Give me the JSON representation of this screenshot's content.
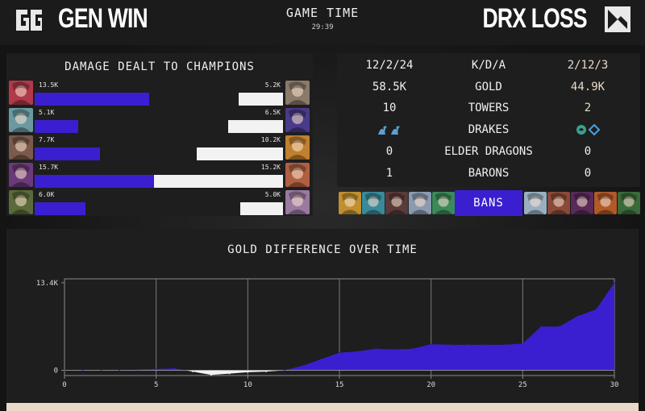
{
  "header": {
    "left_team": "GEN WIN",
    "right_team": "DRX LOSS",
    "game_time_label": "GAME TIME",
    "game_clock": "29:39"
  },
  "damage": {
    "title": "DAMAGE DEALT TO CHAMPIONS",
    "rows": [
      {
        "left_value": "13.5K",
        "left_num": 13.5,
        "left_color": "#b03a4a",
        "right_value": "5.2K",
        "right_num": 5.2,
        "right_color": "#8a7a6a"
      },
      {
        "left_value": "5.1K",
        "left_num": 5.1,
        "left_color": "#6a9aa0",
        "right_value": "6.5K",
        "right_num": 6.5,
        "right_color": "#4a3a8a"
      },
      {
        "left_value": "7.7K",
        "left_num": 7.7,
        "left_color": "#7a5a4a",
        "right_value": "10.2K",
        "right_num": 10.2,
        "right_color": "#c08030"
      },
      {
        "left_value": "15.7K",
        "left_num": 15.7,
        "left_color": "#6a3a7a",
        "right_value": "15.2K",
        "right_num": 15.2,
        "right_color": "#b06040"
      },
      {
        "left_value": "6.0K",
        "left_num": 6.0,
        "left_color": "#5a6a3a",
        "right_value": "5.0K",
        "right_num": 5.0,
        "right_color": "#9a7aa0"
      }
    ]
  },
  "stats": {
    "rows": [
      {
        "left": "12/2/24",
        "label": "K/D/A",
        "right": "2/12/3",
        "right_accent": true
      },
      {
        "left": "58.5K",
        "label": "GOLD",
        "right": "44.9K",
        "right_accent": true
      },
      {
        "left": "10",
        "label": "TOWERS",
        "right": "2",
        "right_accent": true
      },
      {
        "left": "",
        "label": "DRAKES",
        "right": "",
        "right_accent": false,
        "icons": true
      },
      {
        "left": "0",
        "label": "ELDER DRAGONS",
        "right": "0",
        "right_accent": false
      },
      {
        "left": "1",
        "label": "BARONS",
        "right": "0",
        "right_accent": false
      }
    ],
    "drake_icons_left": [
      "ocean-drake-icon",
      "ocean-drake-icon"
    ],
    "drake_icons_right": [
      "cloud-drake-icon",
      "hextech-drake-icon"
    ]
  },
  "bans": {
    "label": "BANS",
    "left_colors": [
      "#c09030",
      "#3a8a9a",
      "#5a3a3a",
      "#8a9ab0",
      "#3a8a5a"
    ],
    "right_colors": [
      "#9ab0c0",
      "#8a4a3a",
      "#5a2a5a",
      "#b05a2a",
      "#3a6a3a"
    ]
  },
  "chart_data": {
    "type": "area",
    "title": "GOLD DIFFERENCE OVER TIME",
    "x": [
      0,
      1,
      2,
      3,
      4,
      5,
      6,
      7,
      8,
      9,
      10,
      11,
      12,
      13,
      14,
      15,
      16,
      17,
      18,
      19,
      20,
      21,
      22,
      23,
      24,
      25,
      26,
      27,
      28,
      29,
      30
    ],
    "values": [
      0,
      0,
      0,
      0,
      100,
      200,
      300,
      -200,
      -700,
      -500,
      -300,
      -200,
      0,
      700,
      1700,
      2700,
      2900,
      3300,
      3200,
      3300,
      4000,
      3900,
      3900,
      3900,
      3900,
      4100,
      6700,
      6700,
      8300,
      9300,
      13400
    ],
    "xlim": [
      0,
      30
    ],
    "ylim": [
      -800,
      14000
    ],
    "xticks": [
      "0",
      "5",
      "10",
      "15",
      "20",
      "25",
      "30"
    ],
    "yticks": [
      "13.4K",
      "0"
    ],
    "fill_positive": "#3a1fd0",
    "fill_negative": "#f2f2f2",
    "grid": true
  }
}
